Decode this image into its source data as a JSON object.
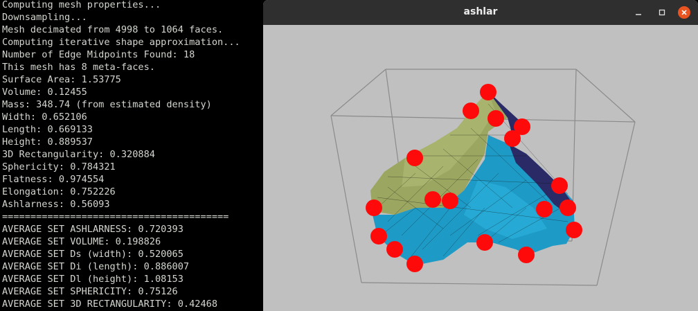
{
  "terminal": {
    "lines": [
      "Computing mesh properties...",
      "Downsampling...",
      "Mesh decimated from 4998 to 1064 faces.",
      "Computing iterative shape approximation...",
      "Number of Edge Midpoints Found: 18",
      "This mesh has 8 meta-faces.",
      "Surface Area: 1.53775",
      "Volume: 0.12455",
      "Mass: 348.74 (from estimated density)",
      "Width: 0.652106",
      "Length: 0.669133",
      "Height: 0.889537",
      "3D Rectangularity: 0.320884",
      "Sphericity: 0.784321",
      "Flatness: 0.974554",
      "Elongation: 0.752226",
      "Ashlarness: 0.56093",
      "========================================",
      "AVERAGE SET ASHLARNESS: 0.720393",
      "AVERAGE SET VOLUME: 0.198826",
      "AVERAGE SET Ds (width): 0.520065",
      "AVERAGE SET Di (length): 0.886007",
      "AVERAGE SET Dl (height): 1.08153",
      "AVERAGE SET SPHERICITY: 0.75126",
      "AVERAGE SET 3D RECTANGULARITY: 0.42468"
    ]
  },
  "window": {
    "title": "ashlar",
    "minimize_icon": "minimize-icon",
    "maximize_icon": "maximize-icon",
    "close_icon": "close-icon"
  },
  "viewport": {
    "background_color": "#c0c0c0",
    "bounding_box_color": "#8a8a8a",
    "mesh_colors": {
      "olive": "#9ba660",
      "light_olive": "#b3bd78",
      "blue": "#1e9ac6",
      "light_blue": "#2ab0dc",
      "dark_navy": "#2a2a66",
      "wire": "#101010"
    },
    "marker_color": "#ff0a0a",
    "marker_count": 18
  },
  "colors": {
    "terminal_bg": "#000000",
    "terminal_text": "#d3d7cf",
    "titlebar_bg": "#2f2f2f",
    "close_button": "#e95420"
  }
}
